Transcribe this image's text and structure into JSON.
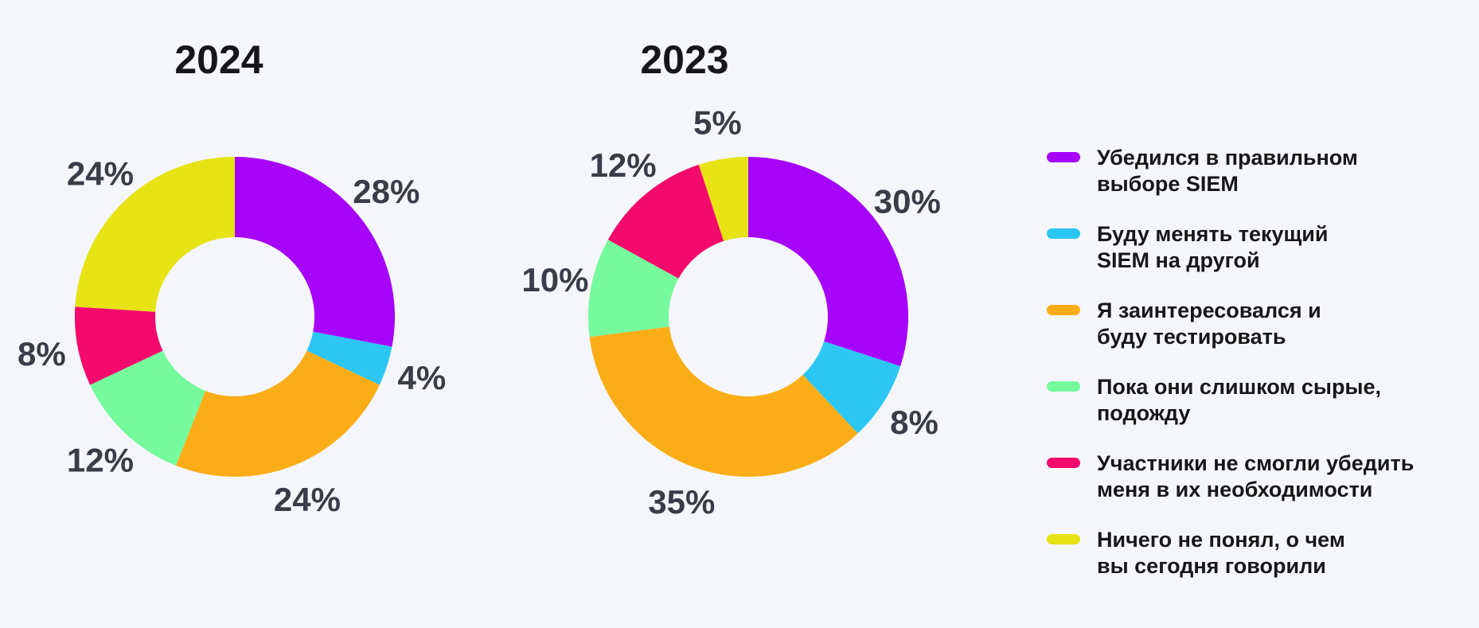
{
  "background_color": "#F5F6FA",
  "palette": [
    "#A704FA",
    "#2BC7F2",
    "#FBAD17",
    "#75FA9D",
    "#F40A6C",
    "#E7E315"
  ],
  "label_color": "#3A3C47",
  "title_color": "#17171B",
  "chart_data": [
    {
      "type": "pie",
      "subtype": "donut",
      "title": "2024",
      "categories": [
        "Убедился в правильном выборе SIEM",
        "Буду менять текущий SIEM на другой",
        "Я заинтересовался и буду тестировать",
        "Пока они слишком сырые, подожду",
        "Участники не смогли убедить меня в их необходимости",
        "Ничего не понял, о чем вы сегодня говорили"
      ],
      "values": [
        28,
        4,
        24,
        12,
        8,
        24
      ],
      "data_labels": [
        "28%",
        "4%",
        "24%",
        "12%",
        "8%",
        "24%"
      ],
      "start_angle_deg_from_top": 0,
      "direction": "clockwise",
      "legend_position": "right"
    },
    {
      "type": "pie",
      "subtype": "donut",
      "title": "2023",
      "categories": [
        "Убедился в правильном выборе SIEM",
        "Буду менять текущий SIEM на другой",
        "Я заинтересовался и буду тестировать",
        "Пока они слишком сырые, подожду",
        "Участники не смогли убедить меня в их необходимости",
        "Ничего не понял, о чем вы сегодня говорили"
      ],
      "values": [
        30,
        8,
        35,
        10,
        12,
        5
      ],
      "data_labels": [
        "30%",
        "8%",
        "35%",
        "10%",
        "12%",
        "5%"
      ],
      "start_angle_deg_from_top": 0,
      "direction": "clockwise",
      "legend_position": "right"
    }
  ],
  "legend": {
    "items": [
      {
        "lines": [
          "Убедился в правильном",
          "выборе SIEM"
        ]
      },
      {
        "lines": [
          "Буду менять текущий",
          "SIEM на другой"
        ]
      },
      {
        "lines": [
          "Я заинтересовался и",
          "буду тестировать"
        ]
      },
      {
        "lines": [
          "Пока они слишком сырые,",
          "подожду"
        ]
      },
      {
        "lines": [
          "Участники не смогли убедить",
          "меня в их необходимости"
        ]
      },
      {
        "lines": [
          "Ничего не понял, о чем",
          "вы сегодня говорили"
        ]
      }
    ]
  }
}
